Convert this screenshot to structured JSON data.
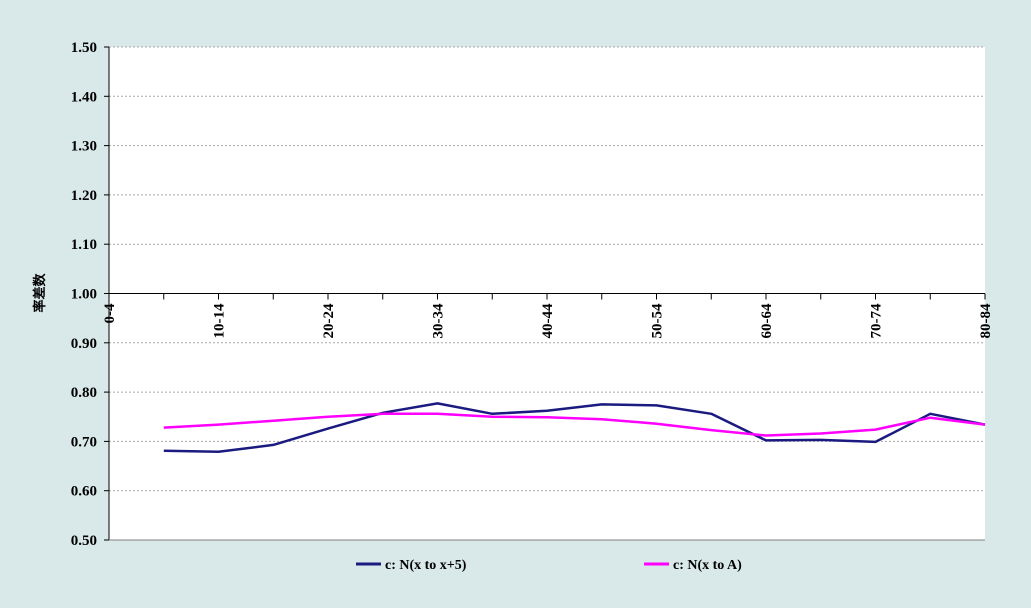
{
  "chart_data": {
    "type": "line",
    "title": "",
    "xlabel": "",
    "ylabel": "率差数",
    "ylim": [
      0.5,
      1.5
    ],
    "yticks": [
      "0.50",
      "0.60",
      "0.70",
      "0.80",
      "0.90",
      "1.00",
      "1.10",
      "1.20",
      "1.30",
      "1.40",
      "1.50"
    ],
    "x_axis_crosses_at": 1.0,
    "categories": [
      "0-4",
      "5-9",
      "10-14",
      "15-19",
      "20-24",
      "25-29",
      "30-34",
      "35-39",
      "40-44",
      "45-49",
      "50-54",
      "55-59",
      "60-64",
      "65-69",
      "70-74",
      "75-79",
      "80-84"
    ],
    "x_tick_labels": [
      "0-4",
      "",
      "10-14",
      "",
      "20-24",
      "",
      "30-34",
      "",
      "40-44",
      "",
      "50-54",
      "",
      "60-64",
      "",
      "70-74",
      "",
      "80-84"
    ],
    "grid": true,
    "legend_position": "bottom",
    "series": [
      {
        "name": "c: N(x to x+5)",
        "color": "#1a1a80",
        "values": [
          null,
          0.681,
          0.679,
          0.693,
          0.726,
          0.758,
          0.777,
          0.756,
          0.762,
          0.775,
          0.773,
          0.756,
          0.702,
          0.703,
          0.699,
          0.756,
          0.734
        ]
      },
      {
        "name": "c: N(x to A)",
        "color": "#ff00ff",
        "values": [
          null,
          0.728,
          0.734,
          0.742,
          0.75,
          0.756,
          0.756,
          0.75,
          0.749,
          0.745,
          0.736,
          0.723,
          0.712,
          0.716,
          0.724,
          0.748,
          0.734
        ]
      }
    ]
  }
}
